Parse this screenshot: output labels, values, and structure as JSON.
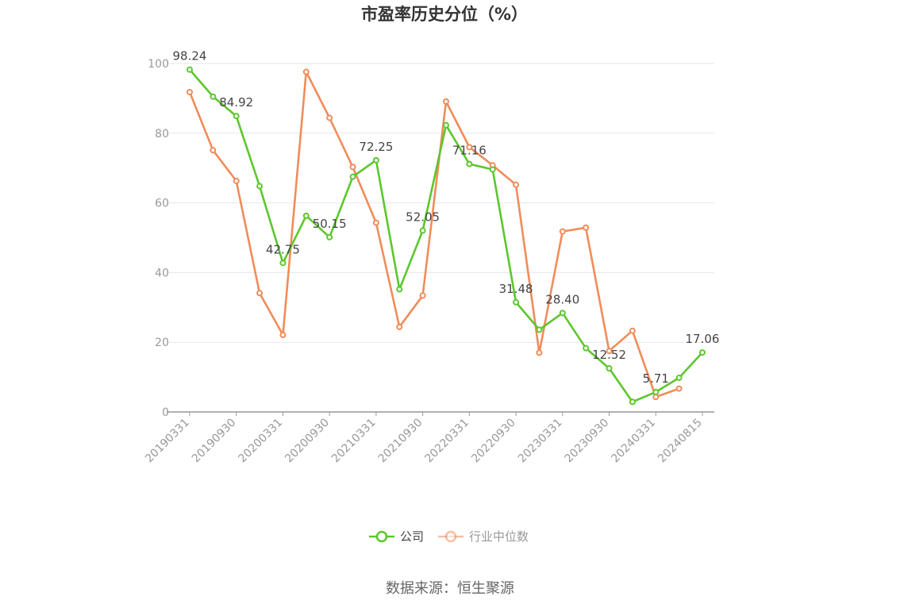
{
  "chart_data": {
    "type": "line",
    "title": "市盈率历史分位（%）",
    "source": "数据来源：恒生聚源",
    "ylim": [
      0,
      100
    ],
    "yticks": [
      0,
      20,
      40,
      60,
      80,
      100
    ],
    "grid": true,
    "legend_position": "bottom",
    "x": [
      "20190331",
      "20190630",
      "20190930",
      "20191231",
      "20200331",
      "20200630",
      "20200930",
      "20201231",
      "20210331",
      "20210630",
      "20210930",
      "20211231",
      "20220331",
      "20220630",
      "20220930",
      "20221231",
      "20230331",
      "20230630",
      "20230930",
      "20231231",
      "20240331",
      "20240630",
      "20240815"
    ],
    "xtick_labels": [
      "20190331",
      "20190930",
      "20200331",
      "20200930",
      "20210331",
      "20210930",
      "20220331",
      "20220930",
      "20230331",
      "20230930",
      "20240331",
      "20240815"
    ],
    "series": [
      {
        "name": "公司",
        "color": "#5cc72c",
        "values": [
          98.24,
          90.5,
          84.92,
          64.8,
          42.75,
          56.3,
          50.15,
          67.5,
          72.25,
          35.2,
          52.05,
          82.3,
          71.16,
          69.6,
          31.48,
          23.6,
          28.4,
          18.3,
          12.52,
          2.9,
          5.71,
          9.8,
          17.06
        ],
        "labels": [
          "98.24",
          "",
          "84.92",
          "",
          "42.75",
          "",
          "50.15",
          "",
          "72.25",
          "",
          "52.05",
          "",
          "71.16",
          "",
          "31.48",
          "",
          "28.40",
          "",
          "12.52",
          "",
          "5.71",
          "",
          "17.06"
        ]
      },
      {
        "name": "行业中位数",
        "color": "#f08c5a",
        "values": [
          91.8,
          75.1,
          66.3,
          34.1,
          22.1,
          97.6,
          84.4,
          70.3,
          54.3,
          24.4,
          33.4,
          89.1,
          76.0,
          70.8,
          65.2,
          17.0,
          51.8,
          52.9,
          17.5,
          23.3,
          4.3,
          6.7,
          null
        ]
      }
    ]
  }
}
